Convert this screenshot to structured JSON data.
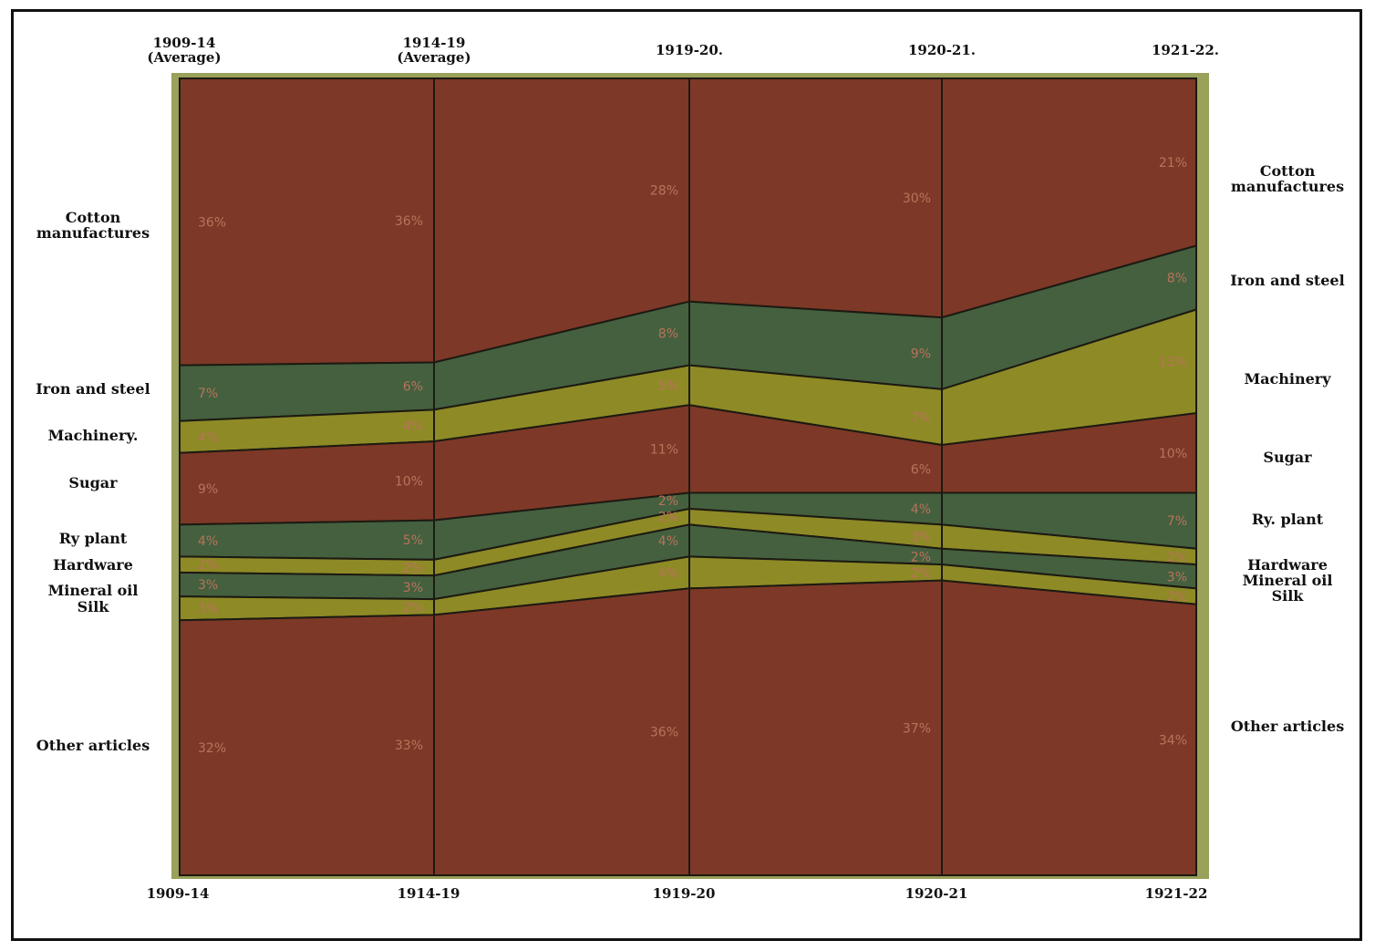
{
  "chart_data": {
    "type": "area",
    "stacked": true,
    "percent": true,
    "title": "",
    "top_labels": [
      "1909-14\n(Average)",
      "1914-19\n(Average)",
      "1919-20.",
      "1920-21.",
      "1921-22."
    ],
    "categories": [
      "1909-14",
      "1914-19",
      "1919-20",
      "1920-21",
      "1921-22"
    ],
    "series": [
      {
        "name": "Cotton manufactures",
        "values": [
          36,
          36,
          28,
          30,
          21
        ],
        "labels": [
          "36%",
          "36%",
          "28%",
          "30%",
          "21%"
        ],
        "color": "#7e3827"
      },
      {
        "name": "Iron and steel",
        "values": [
          7,
          6,
          8,
          9,
          8
        ],
        "labels": [
          "7%",
          "6%",
          "8%",
          "9%",
          "8%"
        ],
        "color": "#44603f"
      },
      {
        "name": "Machinery",
        "values": [
          4,
          4,
          5,
          7,
          13
        ],
        "labels": [
          "4%",
          "4%",
          "5%",
          "7%",
          "13%"
        ],
        "color": "#8e8a26"
      },
      {
        "name": "Sugar",
        "values": [
          9,
          10,
          11,
          6,
          10
        ],
        "labels": [
          "9%",
          "10%",
          "11%",
          "6%",
          "10%"
        ],
        "color": "#7e3827"
      },
      {
        "name": "Ry plant",
        "values": [
          4,
          5,
          2,
          4,
          7
        ],
        "labels": [
          "4%",
          "5%",
          "2%",
          "4%",
          "7%"
        ],
        "color": "#44603f"
      },
      {
        "name": "Hardware",
        "values": [
          2,
          2,
          2,
          3,
          2
        ],
        "labels": [
          "2%",
          "2%",
          "2%",
          "3%",
          "2%"
        ],
        "color": "#8e8a26"
      },
      {
        "name": "Mineral oil",
        "values": [
          3,
          3,
          4,
          2,
          3
        ],
        "labels": [
          "3%",
          "3%",
          "4%",
          "2%",
          "3%"
        ],
        "color": "#44603f"
      },
      {
        "name": "Silk",
        "values": [
          3,
          2,
          4,
          2,
          2
        ],
        "labels": [
          "3%",
          "2%",
          "4%",
          "2%",
          "2%"
        ],
        "color": "#8e8a26"
      },
      {
        "name": "Other articles",
        "values": [
          32,
          33,
          36,
          37,
          34
        ],
        "labels": [
          "32%",
          "33%",
          "36%",
          "37%",
          "34%"
        ],
        "color": "#7e3827"
      }
    ],
    "left_labels": [
      {
        "series": 0,
        "text": "Cotton\nmanufactures"
      },
      {
        "series": 1,
        "text": "Iron and steel"
      },
      {
        "series": 2,
        "text": "Machinery."
      },
      {
        "series": 3,
        "text": "Sugar"
      },
      {
        "series": 4,
        "text": "Ry plant"
      },
      {
        "series": 5,
        "text": "Hardware"
      },
      {
        "series": 6,
        "text": "Mineral oil"
      },
      {
        "series": 7,
        "text": "Silk"
      },
      {
        "series": 8,
        "text": "Other articles"
      }
    ],
    "right_labels": [
      {
        "series": 0,
        "text": "Cotton\nmanufactures"
      },
      {
        "series": 1,
        "text": "Iron and steel"
      },
      {
        "series": 2,
        "text": "Machinery"
      },
      {
        "series": 3,
        "text": "Sugar"
      },
      {
        "series": 4,
        "text": "Ry. plant"
      },
      {
        "series": 5,
        "text": "Hardware"
      },
      {
        "series": 6,
        "text": "Mineral oil"
      },
      {
        "series": 7,
        "text": "Silk"
      },
      {
        "series": 8,
        "text": "Other articles"
      }
    ],
    "ylim": [
      0,
      100
    ],
    "grid": "vertical lines at each period",
    "label_color": "#b8735a"
  }
}
